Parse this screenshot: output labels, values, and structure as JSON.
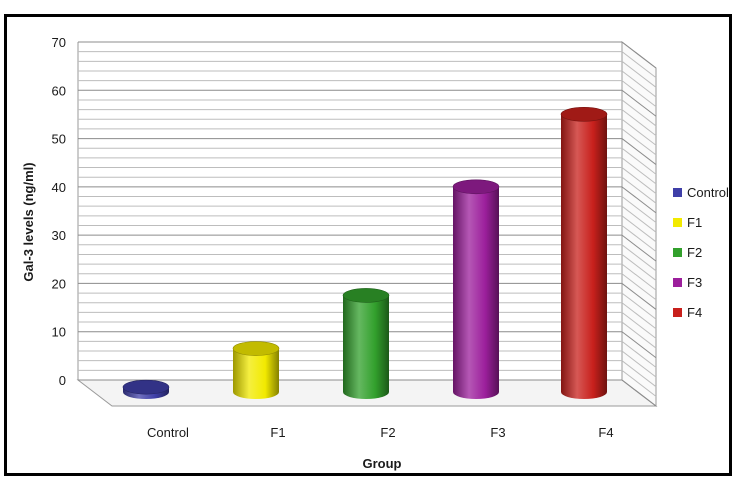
{
  "chart_data": {
    "type": "bar",
    "style": "3d-cylinder",
    "title": "",
    "xlabel": "Group",
    "ylabel": "Gal-3 levels  (ng/ml)",
    "categories": [
      "Control",
      "F1",
      "F2",
      "F3",
      "F4"
    ],
    "values": [
      1.0,
      9.0,
      20.0,
      42.5,
      57.5
    ],
    "ylim": [
      0,
      70
    ],
    "yticks": [
      0,
      10,
      20,
      30,
      40,
      50,
      60,
      70
    ],
    "grid": true,
    "legend_position": "right",
    "series": [
      {
        "name": "Control",
        "value": 1.0,
        "color": "#3f3fa8"
      },
      {
        "name": "F1",
        "value": 9.0,
        "color": "#f2ea00"
      },
      {
        "name": "F2",
        "value": 20.0,
        "color": "#32a02c"
      },
      {
        "name": "F3",
        "value": 42.5,
        "color": "#9c1f9c"
      },
      {
        "name": "F4",
        "value": 57.5,
        "color": "#c8201c"
      }
    ]
  }
}
